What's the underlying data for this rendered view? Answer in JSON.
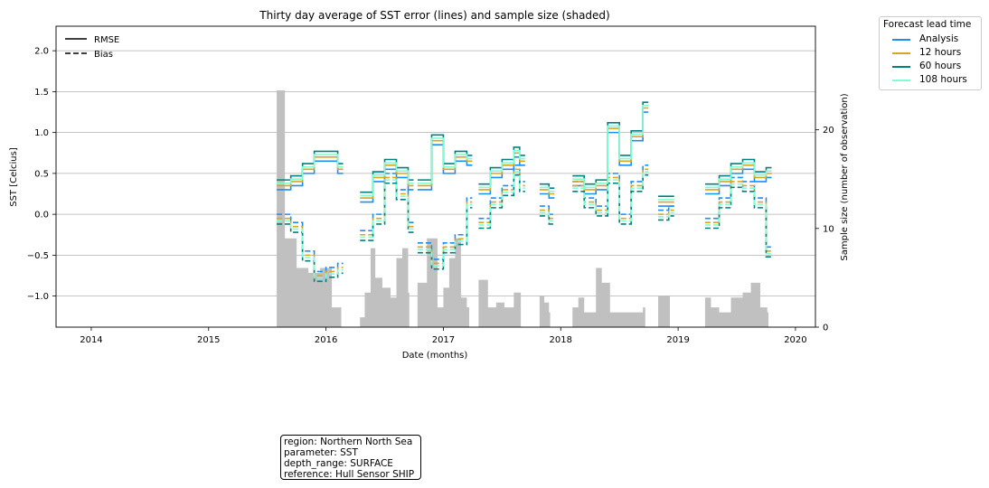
{
  "chart_data": {
    "type": "line",
    "title": "Thirty day average of SST error (lines) and sample size (shaded)",
    "xlabel": "Date (months)",
    "ylabel": "SST [Celcius]",
    "y2label": "Sample size (number of observation)",
    "xlim": [
      2013.7,
      2020.17
    ],
    "ylim": [
      -1.38,
      2.3
    ],
    "y2lim": [
      0,
      30.5
    ],
    "xticks": [
      "2014",
      "2015",
      "2016",
      "2017",
      "2018",
      "2019",
      "2020"
    ],
    "xtick_values": [
      2014,
      2015,
      2016,
      2017,
      2018,
      2019,
      2020
    ],
    "yticks": [
      "−1.0",
      "−0.5",
      "0.0",
      "0.5",
      "1.0",
      "1.5",
      "2.0"
    ],
    "ytick_values": [
      -1.0,
      -0.5,
      0.0,
      0.5,
      1.0,
      1.5,
      2.0
    ],
    "y2ticks": [
      "0",
      "10",
      "20"
    ],
    "y2tick_values": [
      0,
      10,
      20
    ],
    "grid": "horizontal",
    "style_legend": {
      "placement": "upper-left",
      "entries": [
        {
          "label": "RMSE",
          "dash": "solid"
        },
        {
          "label": "Bias",
          "dash": "dashed"
        }
      ]
    },
    "lead_legend": {
      "title": "Forecast lead time",
      "placement": "outside-right",
      "entries": [
        {
          "label": "Analysis",
          "color": "#1f8ef1"
        },
        {
          "label": "12 hours",
          "color": "#daa520"
        },
        {
          "label": "60 hours",
          "color": "#008080"
        },
        {
          "label": "108 hours",
          "color": "#7fffd4"
        }
      ]
    },
    "segments": [
      {
        "rmse": [
          [
            2015.58,
            0.3
          ],
          [
            2015.7,
            0.35
          ],
          [
            2015.8,
            0.5
          ],
          [
            2015.9,
            0.65
          ],
          [
            2016.0,
            0.65
          ],
          [
            2016.1,
            0.5
          ]
        ],
        "bias": [
          [
            2015.58,
            0.0
          ],
          [
            2015.7,
            -0.1
          ],
          [
            2015.8,
            -0.45
          ],
          [
            2015.9,
            -0.7
          ],
          [
            2016.0,
            -0.65
          ],
          [
            2016.1,
            -0.6
          ]
        ],
        "samples": [
          [
            2015.58,
            24
          ],
          [
            2015.65,
            9
          ],
          [
            2015.75,
            6
          ],
          [
            2015.85,
            5.5
          ],
          [
            2015.95,
            6
          ],
          [
            2016.05,
            2
          ],
          [
            2016.1,
            2
          ],
          [
            2016.12,
            2
          ],
          [
            2016.13,
            0
          ]
        ]
      },
      {
        "rmse": [
          [
            2016.29,
            0.15
          ],
          [
            2016.4,
            0.4
          ],
          [
            2016.5,
            0.55
          ],
          [
            2016.6,
            0.45
          ],
          [
            2016.7,
            0.3
          ]
        ],
        "bias": [
          [
            2016.29,
            -0.2
          ],
          [
            2016.4,
            0.0
          ],
          [
            2016.5,
            0.5
          ],
          [
            2016.6,
            0.3
          ],
          [
            2016.7,
            -0.1
          ]
        ],
        "samples": [
          [
            2016.29,
            1
          ],
          [
            2016.33,
            3.5
          ],
          [
            2016.38,
            8
          ],
          [
            2016.42,
            5
          ],
          [
            2016.48,
            4
          ],
          [
            2016.55,
            3
          ],
          [
            2016.6,
            7
          ],
          [
            2016.65,
            8
          ],
          [
            2016.7,
            3.5
          ],
          [
            2016.71,
            0
          ]
        ]
      },
      {
        "rmse": [
          [
            2016.78,
            0.3
          ],
          [
            2016.9,
            0.85
          ],
          [
            2017.0,
            0.5
          ],
          [
            2017.1,
            0.65
          ],
          [
            2017.2,
            0.6
          ]
        ],
        "bias": [
          [
            2016.78,
            -0.35
          ],
          [
            2016.9,
            -0.55
          ],
          [
            2017.0,
            -0.35
          ],
          [
            2017.1,
            -0.25
          ],
          [
            2017.2,
            0.2
          ]
        ],
        "samples": [
          [
            2016.78,
            4.5
          ],
          [
            2016.86,
            9
          ],
          [
            2016.95,
            2
          ],
          [
            2017.0,
            4
          ],
          [
            2017.05,
            7
          ],
          [
            2017.1,
            9
          ],
          [
            2017.15,
            3
          ],
          [
            2017.2,
            2
          ],
          [
            2017.22,
            0
          ]
        ]
      },
      {
        "rmse": [
          [
            2017.3,
            0.25
          ],
          [
            2017.4,
            0.45
          ],
          [
            2017.5,
            0.55
          ],
          [
            2017.6,
            0.7
          ],
          [
            2017.65,
            0.6
          ]
        ],
        "bias": [
          [
            2017.3,
            -0.05
          ],
          [
            2017.4,
            0.2
          ],
          [
            2017.5,
            0.35
          ],
          [
            2017.6,
            0.6
          ],
          [
            2017.65,
            0.4
          ]
        ],
        "samples": [
          [
            2017.3,
            4.8
          ],
          [
            2017.38,
            2
          ],
          [
            2017.45,
            2.5
          ],
          [
            2017.52,
            2
          ],
          [
            2017.6,
            3.5
          ],
          [
            2017.65,
            3.5
          ],
          [
            2017.66,
            0
          ]
        ]
      },
      {
        "rmse": [
          [
            2017.82,
            0.25
          ],
          [
            2017.9,
            0.2
          ]
        ],
        "bias": [
          [
            2017.82,
            0.1
          ],
          [
            2017.9,
            0.0
          ]
        ],
        "samples": [
          [
            2017.82,
            3.2
          ],
          [
            2017.86,
            2.5
          ],
          [
            2017.9,
            1.5
          ],
          [
            2017.91,
            0
          ]
        ]
      },
      {
        "rmse": [
          [
            2018.1,
            0.35
          ],
          [
            2018.2,
            0.25
          ],
          [
            2018.3,
            0.3
          ],
          [
            2018.4,
            1.0
          ],
          [
            2018.5,
            0.6
          ],
          [
            2018.6,
            0.9
          ],
          [
            2018.7,
            1.25
          ]
        ],
        "bias": [
          [
            2018.1,
            0.4
          ],
          [
            2018.2,
            0.2
          ],
          [
            2018.3,
            0.1
          ],
          [
            2018.4,
            0.5
          ],
          [
            2018.5,
            0.0
          ],
          [
            2018.6,
            0.4
          ],
          [
            2018.7,
            0.6
          ]
        ],
        "samples": [
          [
            2018.1,
            2
          ],
          [
            2018.15,
            3
          ],
          [
            2018.2,
            1.5
          ],
          [
            2018.3,
            6
          ],
          [
            2018.35,
            4.5
          ],
          [
            2018.42,
            1.5
          ],
          [
            2018.5,
            1.5
          ],
          [
            2018.6,
            1.5
          ],
          [
            2018.7,
            2
          ],
          [
            2018.72,
            0
          ]
        ]
      },
      {
        "rmse": [
          [
            2018.83,
            0.1
          ],
          [
            2018.92,
            0.1
          ]
        ],
        "bias": [
          [
            2018.83,
            0.05
          ],
          [
            2018.92,
            0.1
          ]
        ],
        "samples": [
          [
            2018.83,
            3.2
          ],
          [
            2018.92,
            3.2
          ],
          [
            2018.93,
            0
          ]
        ]
      },
      {
        "rmse": [
          [
            2019.23,
            0.25
          ],
          [
            2019.35,
            0.35
          ],
          [
            2019.45,
            0.5
          ],
          [
            2019.55,
            0.55
          ],
          [
            2019.65,
            0.4
          ],
          [
            2019.75,
            0.45
          ]
        ],
        "bias": [
          [
            2019.23,
            -0.05
          ],
          [
            2019.35,
            0.2
          ],
          [
            2019.45,
            0.45
          ],
          [
            2019.55,
            0.4
          ],
          [
            2019.65,
            0.2
          ],
          [
            2019.75,
            -0.4
          ]
        ],
        "samples": [
          [
            2019.23,
            3
          ],
          [
            2019.28,
            2
          ],
          [
            2019.35,
            1.5
          ],
          [
            2019.45,
            3
          ],
          [
            2019.55,
            3.5
          ],
          [
            2019.62,
            4.5
          ],
          [
            2019.7,
            2
          ],
          [
            2019.76,
            1.5
          ],
          [
            2019.77,
            0
          ]
        ]
      }
    ],
    "lead_offsets": [
      0.0,
      0.05,
      0.12,
      0.08
    ]
  },
  "info_box": {
    "lines": [
      "region: Northern North Sea",
      "parameter: SST",
      "depth_range: SURFACE",
      "reference: Hull Sensor SHIP"
    ]
  }
}
